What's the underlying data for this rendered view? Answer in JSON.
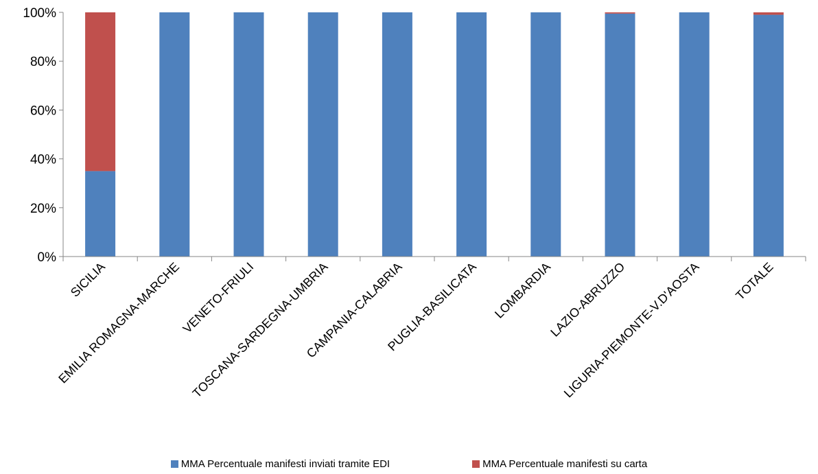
{
  "chart_data": {
    "type": "bar",
    "stacked": true,
    "percent_stacked": true,
    "categories": [
      "SICILIA",
      "EMILIA ROMAGNA-MARCHE",
      "VENETO-FRIULI",
      "TOSCANA-SARDEGNA-UMBRIA",
      "CAMPANIA-CALABRIA",
      "PUGLIA-BASILICATA",
      "LOMBARDIA",
      "LAZIO-ABRUZZO",
      "LIGURIA-PIEMONTE-V.D'AOSTA",
      "TOTALE"
    ],
    "series": [
      {
        "name": "MMA Percentuale manifesti inviati  tramite EDI",
        "color": "#4f81bd",
        "values": [
          35,
          100,
          100,
          100,
          100,
          100,
          100,
          99.5,
          100,
          99
        ]
      },
      {
        "name": "MMA Percentuale manifesti su carta",
        "color": "#c0504d",
        "values": [
          65,
          0,
          0,
          0,
          0,
          0,
          0,
          0.5,
          0,
          1
        ]
      }
    ],
    "ylim": [
      0,
      100
    ],
    "y_ticks": [
      "0%",
      "20%",
      "40%",
      "60%",
      "80%",
      "100%"
    ],
    "grid": false,
    "legend_position": "bottom"
  }
}
